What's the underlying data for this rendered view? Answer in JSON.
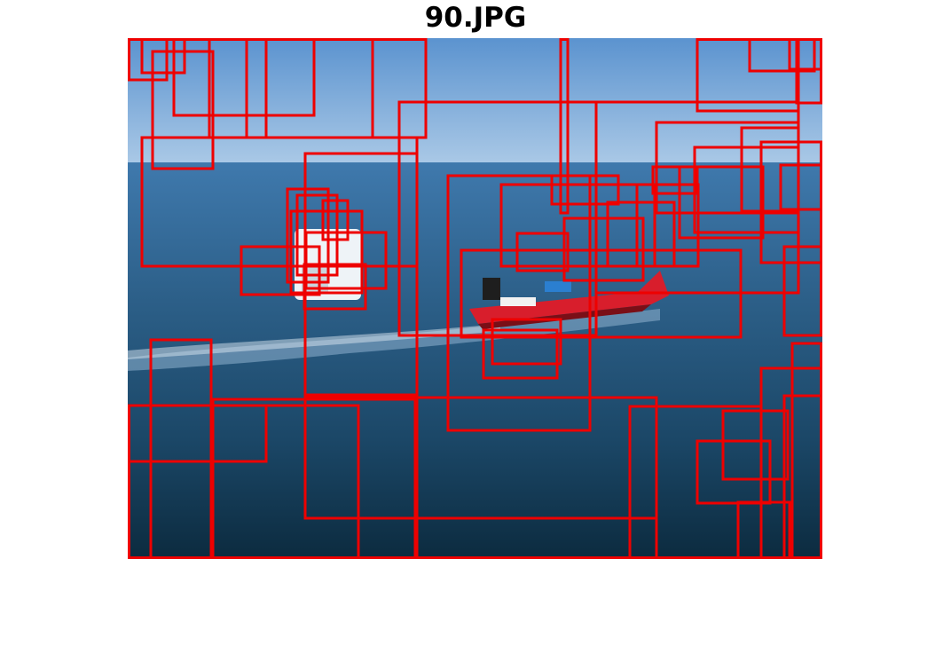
{
  "figure": {
    "title": "90.JPG",
    "box_color": "#ee0000"
  }
}
